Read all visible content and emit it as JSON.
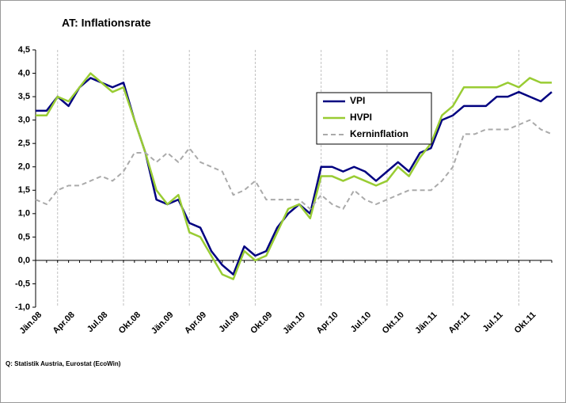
{
  "chart_data": {
    "type": "line",
    "title": "AT: Inflationsrate",
    "source": "Q: Statistik Austria, Eurostat (EcoWin)",
    "categories": [
      "Jän.08",
      null,
      null,
      "Apr.08",
      null,
      null,
      "Jul.08",
      null,
      null,
      "Okt.08",
      null,
      null,
      "Jän.09",
      null,
      null,
      "Apr.09",
      null,
      null,
      "Jul.09",
      null,
      null,
      "Okt.09",
      null,
      null,
      "Jän.10",
      null,
      null,
      "Apr.10",
      null,
      null,
      "Jul.10",
      null,
      null,
      "Okt.10",
      null,
      null,
      "Jän.11",
      null,
      null,
      "Apr.11",
      null,
      null,
      "Jul.11",
      null,
      null,
      "Okt.11",
      null,
      null
    ],
    "series": [
      {
        "name": "VPI",
        "color": "#000080",
        "dash": false,
        "values": [
          3.2,
          3.2,
          3.5,
          3.3,
          3.7,
          3.9,
          3.8,
          3.7,
          3.8,
          3.0,
          2.3,
          1.3,
          1.2,
          1.3,
          0.8,
          0.7,
          0.2,
          -0.1,
          -0.3,
          0.3,
          0.1,
          0.2,
          0.7,
          1.0,
          1.2,
          1.0,
          2.0,
          2.0,
          1.9,
          2.0,
          1.9,
          1.7,
          1.9,
          2.1,
          1.9,
          2.3,
          2.4,
          3.0,
          3.1,
          3.3,
          3.3,
          3.3,
          3.5,
          3.5,
          3.6,
          3.5,
          3.4,
          3.6
        ]
      },
      {
        "name": "HVPI",
        "color": "#99cc33",
        "dash": false,
        "values": [
          3.1,
          3.1,
          3.5,
          3.4,
          3.7,
          4.0,
          3.8,
          3.6,
          3.7,
          3.0,
          2.3,
          1.5,
          1.2,
          1.4,
          0.6,
          0.5,
          0.1,
          -0.3,
          -0.4,
          0.2,
          0.0,
          0.1,
          0.6,
          1.1,
          1.2,
          0.9,
          1.8,
          1.8,
          1.7,
          1.8,
          1.7,
          1.6,
          1.7,
          2.0,
          1.8,
          2.2,
          2.5,
          3.1,
          3.3,
          3.7,
          3.7,
          3.7,
          3.7,
          3.8,
          3.7,
          3.9,
          3.8,
          3.8
        ]
      },
      {
        "name": "Kerninflation",
        "color": "#aaaaaa",
        "dash": true,
        "values": [
          1.3,
          1.2,
          1.5,
          1.6,
          1.6,
          1.7,
          1.8,
          1.7,
          1.9,
          2.3,
          2.3,
          2.1,
          2.3,
          2.1,
          2.4,
          2.1,
          2.0,
          1.9,
          1.4,
          1.5,
          1.7,
          1.3,
          1.3,
          1.3,
          1.3,
          1.1,
          1.4,
          1.2,
          1.1,
          1.5,
          1.3,
          1.2,
          1.3,
          1.4,
          1.5,
          1.5,
          1.5,
          1.7,
          2.0,
          2.7,
          2.7,
          2.8,
          2.8,
          2.8,
          2.9,
          3.0,
          2.8,
          2.7
        ]
      }
    ],
    "ylim": [
      -1.0,
      4.5
    ],
    "yticks": [
      {
        "value": 4.5,
        "label": "4,5"
      },
      {
        "value": 4.0,
        "label": "4,0"
      },
      {
        "value": 3.5,
        "label": "3,5"
      },
      {
        "value": 3.0,
        "label": "3,0"
      },
      {
        "value": 2.5,
        "label": "2,5"
      },
      {
        "value": 2.0,
        "label": "2,0"
      },
      {
        "value": 1.5,
        "label": "1,5"
      },
      {
        "value": 1.0,
        "label": "1,0"
      },
      {
        "value": 0.5,
        "label": "0,5"
      },
      {
        "value": 0.0,
        "label": "0,0"
      },
      {
        "value": -0.5,
        "label": "-0,5"
      },
      {
        "value": -1.0,
        "label": "-1,0"
      }
    ],
    "legend": "upper-right-inner"
  }
}
